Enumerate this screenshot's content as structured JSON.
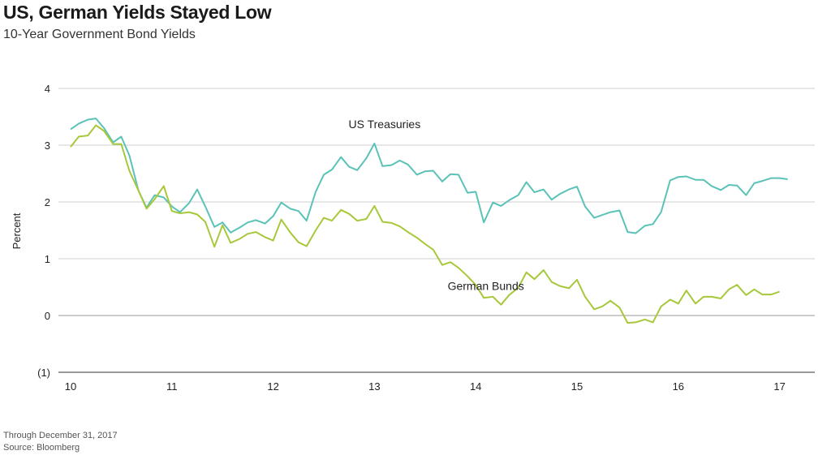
{
  "header": {
    "title": "US, German Yields Stayed Low",
    "subtitle": "10-Year Government Bond Yields"
  },
  "footer": {
    "note": "Through December 31, 2017",
    "source": "Source: Bloomberg"
  },
  "colors": {
    "us": "#5bc2b8",
    "de": "#a7c83a",
    "grid": "#cfcfcf",
    "zero": "#9a9a9a"
  },
  "chart_data": {
    "type": "line",
    "title": "US, German Yields Stayed Low",
    "subtitle": "10-Year Government Bond Yields",
    "xlabel": "",
    "ylabel": "Percent",
    "xlim": [
      2010,
      2017.35
    ],
    "ylim": [
      -1,
      4
    ],
    "x_ticks": [
      {
        "value": 2010,
        "label": "10"
      },
      {
        "value": 2011,
        "label": "11"
      },
      {
        "value": 2012,
        "label": "12"
      },
      {
        "value": 2013,
        "label": "13"
      },
      {
        "value": 2014,
        "label": "14"
      },
      {
        "value": 2015,
        "label": "15"
      },
      {
        "value": 2016,
        "label": "16"
      },
      {
        "value": 2017,
        "label": "17"
      }
    ],
    "y_ticks": [
      {
        "value": 4,
        "label": "4"
      },
      {
        "value": 3,
        "label": "3"
      },
      {
        "value": 2,
        "label": "2"
      },
      {
        "value": 1,
        "label": "1"
      },
      {
        "value": 0,
        "label": "0"
      },
      {
        "value": -1,
        "label": "(1)"
      }
    ],
    "grid": true,
    "series": [
      {
        "name": "US Treasuries",
        "points": [
          [
            2010.0,
            3.28
          ],
          [
            2010.08,
            3.38
          ],
          [
            2010.17,
            3.45
          ],
          [
            2010.25,
            3.47
          ],
          [
            2010.33,
            3.3
          ],
          [
            2010.42,
            3.05
          ],
          [
            2010.5,
            3.15
          ],
          [
            2010.58,
            2.82
          ],
          [
            2010.67,
            2.2
          ],
          [
            2010.75,
            1.9
          ],
          [
            2010.83,
            2.12
          ],
          [
            2010.92,
            2.08
          ],
          [
            2011.0,
            1.92
          ],
          [
            2011.08,
            1.82
          ],
          [
            2011.17,
            1.98
          ],
          [
            2011.25,
            2.22
          ],
          [
            2011.33,
            1.92
          ],
          [
            2011.42,
            1.56
          ],
          [
            2011.5,
            1.64
          ],
          [
            2011.58,
            1.46
          ],
          [
            2011.67,
            1.55
          ],
          [
            2011.75,
            1.64
          ],
          [
            2011.83,
            1.68
          ],
          [
            2011.92,
            1.62
          ],
          [
            2012.0,
            1.75
          ],
          [
            2012.08,
            1.99
          ],
          [
            2012.17,
            1.88
          ],
          [
            2012.25,
            1.84
          ],
          [
            2012.33,
            1.67
          ],
          [
            2012.42,
            2.18
          ],
          [
            2012.5,
            2.48
          ],
          [
            2012.58,
            2.57
          ],
          [
            2012.67,
            2.79
          ],
          [
            2012.75,
            2.62
          ],
          [
            2012.83,
            2.56
          ],
          [
            2012.92,
            2.77
          ],
          [
            2013.0,
            3.03
          ],
          [
            2013.08,
            2.63
          ],
          [
            2013.17,
            2.65
          ],
          [
            2013.25,
            2.73
          ],
          [
            2013.33,
            2.66
          ],
          [
            2013.42,
            2.48
          ],
          [
            2013.5,
            2.54
          ],
          [
            2013.58,
            2.55
          ],
          [
            2013.67,
            2.36
          ],
          [
            2013.75,
            2.49
          ],
          [
            2013.83,
            2.48
          ],
          [
            2013.92,
            2.16
          ],
          [
            2014.0,
            2.18
          ],
          [
            2014.08,
            1.64
          ],
          [
            2014.17,
            1.99
          ],
          [
            2014.25,
            1.93
          ],
          [
            2014.33,
            2.03
          ],
          [
            2014.42,
            2.12
          ],
          [
            2014.5,
            2.35
          ],
          [
            2014.58,
            2.17
          ],
          [
            2014.67,
            2.22
          ],
          [
            2014.75,
            2.04
          ],
          [
            2014.83,
            2.14
          ],
          [
            2014.92,
            2.22
          ],
          [
            2015.0,
            2.27
          ],
          [
            2015.08,
            1.92
          ],
          [
            2015.17,
            1.72
          ],
          [
            2015.25,
            1.77
          ],
          [
            2015.33,
            1.82
          ],
          [
            2015.42,
            1.85
          ],
          [
            2015.5,
            1.47
          ],
          [
            2015.58,
            1.45
          ],
          [
            2015.67,
            1.58
          ],
          [
            2015.75,
            1.61
          ],
          [
            2015.83,
            1.82
          ],
          [
            2015.92,
            2.38
          ],
          [
            2016.0,
            2.44
          ],
          [
            2016.08,
            2.45
          ],
          [
            2016.17,
            2.39
          ],
          [
            2016.25,
            2.39
          ],
          [
            2016.33,
            2.28
          ],
          [
            2016.42,
            2.21
          ],
          [
            2016.5,
            2.3
          ],
          [
            2016.58,
            2.29
          ],
          [
            2016.67,
            2.12
          ],
          [
            2016.75,
            2.33
          ],
          [
            2016.83,
            2.37
          ],
          [
            2016.92,
            2.42
          ],
          [
            2017.0,
            2.42
          ],
          [
            2017.08,
            2.4
          ]
        ]
      },
      {
        "name": "German Bunds",
        "points": [
          [
            2010.0,
            2.97
          ],
          [
            2010.08,
            3.15
          ],
          [
            2010.17,
            3.17
          ],
          [
            2010.25,
            3.35
          ],
          [
            2010.33,
            3.25
          ],
          [
            2010.42,
            3.02
          ],
          [
            2010.5,
            3.02
          ],
          [
            2010.58,
            2.55
          ],
          [
            2010.67,
            2.2
          ],
          [
            2010.75,
            1.88
          ],
          [
            2010.83,
            2.05
          ],
          [
            2010.92,
            2.28
          ],
          [
            2011.0,
            1.84
          ],
          [
            2011.08,
            1.8
          ],
          [
            2011.17,
            1.82
          ],
          [
            2011.25,
            1.78
          ],
          [
            2011.33,
            1.65
          ],
          [
            2011.42,
            1.21
          ],
          [
            2011.5,
            1.59
          ],
          [
            2011.58,
            1.28
          ],
          [
            2011.67,
            1.35
          ],
          [
            2011.75,
            1.44
          ],
          [
            2011.83,
            1.47
          ],
          [
            2011.92,
            1.38
          ],
          [
            2012.0,
            1.32
          ],
          [
            2012.08,
            1.69
          ],
          [
            2012.17,
            1.46
          ],
          [
            2012.25,
            1.29
          ],
          [
            2012.33,
            1.22
          ],
          [
            2012.42,
            1.5
          ],
          [
            2012.5,
            1.72
          ],
          [
            2012.58,
            1.67
          ],
          [
            2012.67,
            1.86
          ],
          [
            2012.75,
            1.79
          ],
          [
            2012.83,
            1.67
          ],
          [
            2012.92,
            1.7
          ],
          [
            2013.0,
            1.93
          ],
          [
            2013.08,
            1.65
          ],
          [
            2013.17,
            1.63
          ],
          [
            2013.25,
            1.57
          ],
          [
            2013.33,
            1.47
          ],
          [
            2013.42,
            1.37
          ],
          [
            2013.5,
            1.26
          ],
          [
            2013.58,
            1.16
          ],
          [
            2013.67,
            0.89
          ],
          [
            2013.75,
            0.94
          ],
          [
            2013.83,
            0.84
          ],
          [
            2013.92,
            0.69
          ],
          [
            2014.0,
            0.54
          ],
          [
            2014.08,
            0.31
          ],
          [
            2014.17,
            0.33
          ],
          [
            2014.25,
            0.19
          ],
          [
            2014.33,
            0.36
          ],
          [
            2014.42,
            0.49
          ],
          [
            2014.5,
            0.76
          ],
          [
            2014.58,
            0.64
          ],
          [
            2014.67,
            0.8
          ],
          [
            2014.75,
            0.59
          ],
          [
            2014.83,
            0.52
          ],
          [
            2014.92,
            0.48
          ],
          [
            2015.0,
            0.63
          ],
          [
            2015.08,
            0.33
          ],
          [
            2015.17,
            0.11
          ],
          [
            2015.25,
            0.16
          ],
          [
            2015.33,
            0.26
          ],
          [
            2015.42,
            0.14
          ],
          [
            2015.5,
            -0.13
          ],
          [
            2015.58,
            -0.12
          ],
          [
            2015.67,
            -0.07
          ],
          [
            2015.75,
            -0.12
          ],
          [
            2015.83,
            0.16
          ],
          [
            2015.92,
            0.28
          ],
          [
            2016.0,
            0.21
          ],
          [
            2016.08,
            0.44
          ],
          [
            2016.17,
            0.21
          ],
          [
            2016.25,
            0.33
          ],
          [
            2016.33,
            0.33
          ],
          [
            2016.42,
            0.3
          ],
          [
            2016.5,
            0.46
          ],
          [
            2016.58,
            0.54
          ],
          [
            2016.67,
            0.36
          ],
          [
            2016.75,
            0.46
          ],
          [
            2016.83,
            0.37
          ],
          [
            2016.92,
            0.37
          ],
          [
            2017.0,
            0.42
          ]
        ]
      }
    ],
    "annotations": [
      {
        "text": "US Treasuries",
        "near": [
          2013.1,
          3.3
        ]
      },
      {
        "text": "German Bunds",
        "near": [
          2014.1,
          0.45
        ]
      }
    ]
  }
}
